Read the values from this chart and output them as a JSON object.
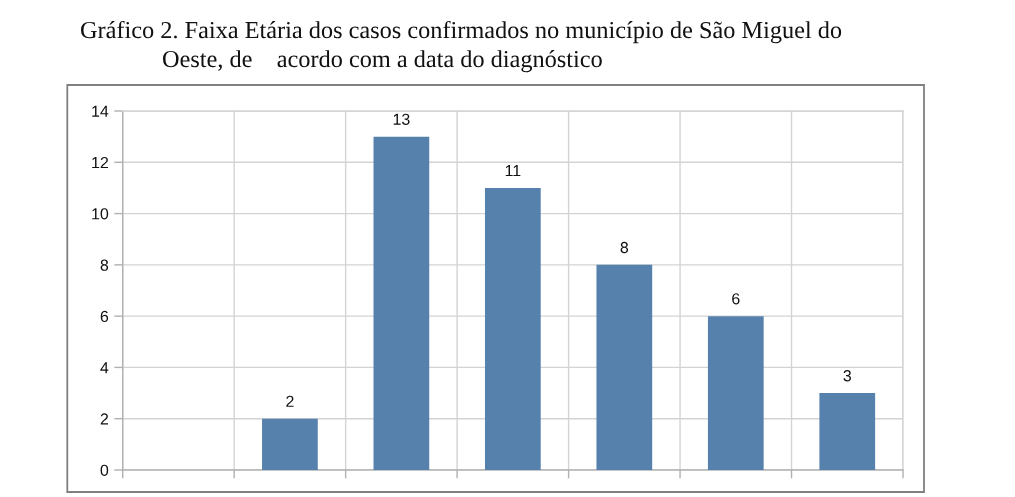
{
  "chart_data": {
    "type": "bar",
    "title": "Gráfico 2. Faixa Etária dos casos confirmados no município de São Miguel do\nOeste, de    acordo com a data do diagnóstico",
    "categories": [
      null,
      null,
      null,
      null,
      null,
      null,
      null
    ],
    "values": [
      null,
      2,
      13,
      11,
      8,
      6,
      3
    ],
    "color": "#5781ad",
    "ylim": [
      0,
      14
    ],
    "yticks": [
      0,
      2,
      4,
      6,
      8,
      10,
      12,
      14
    ],
    "grid": true,
    "data_labels": true
  }
}
